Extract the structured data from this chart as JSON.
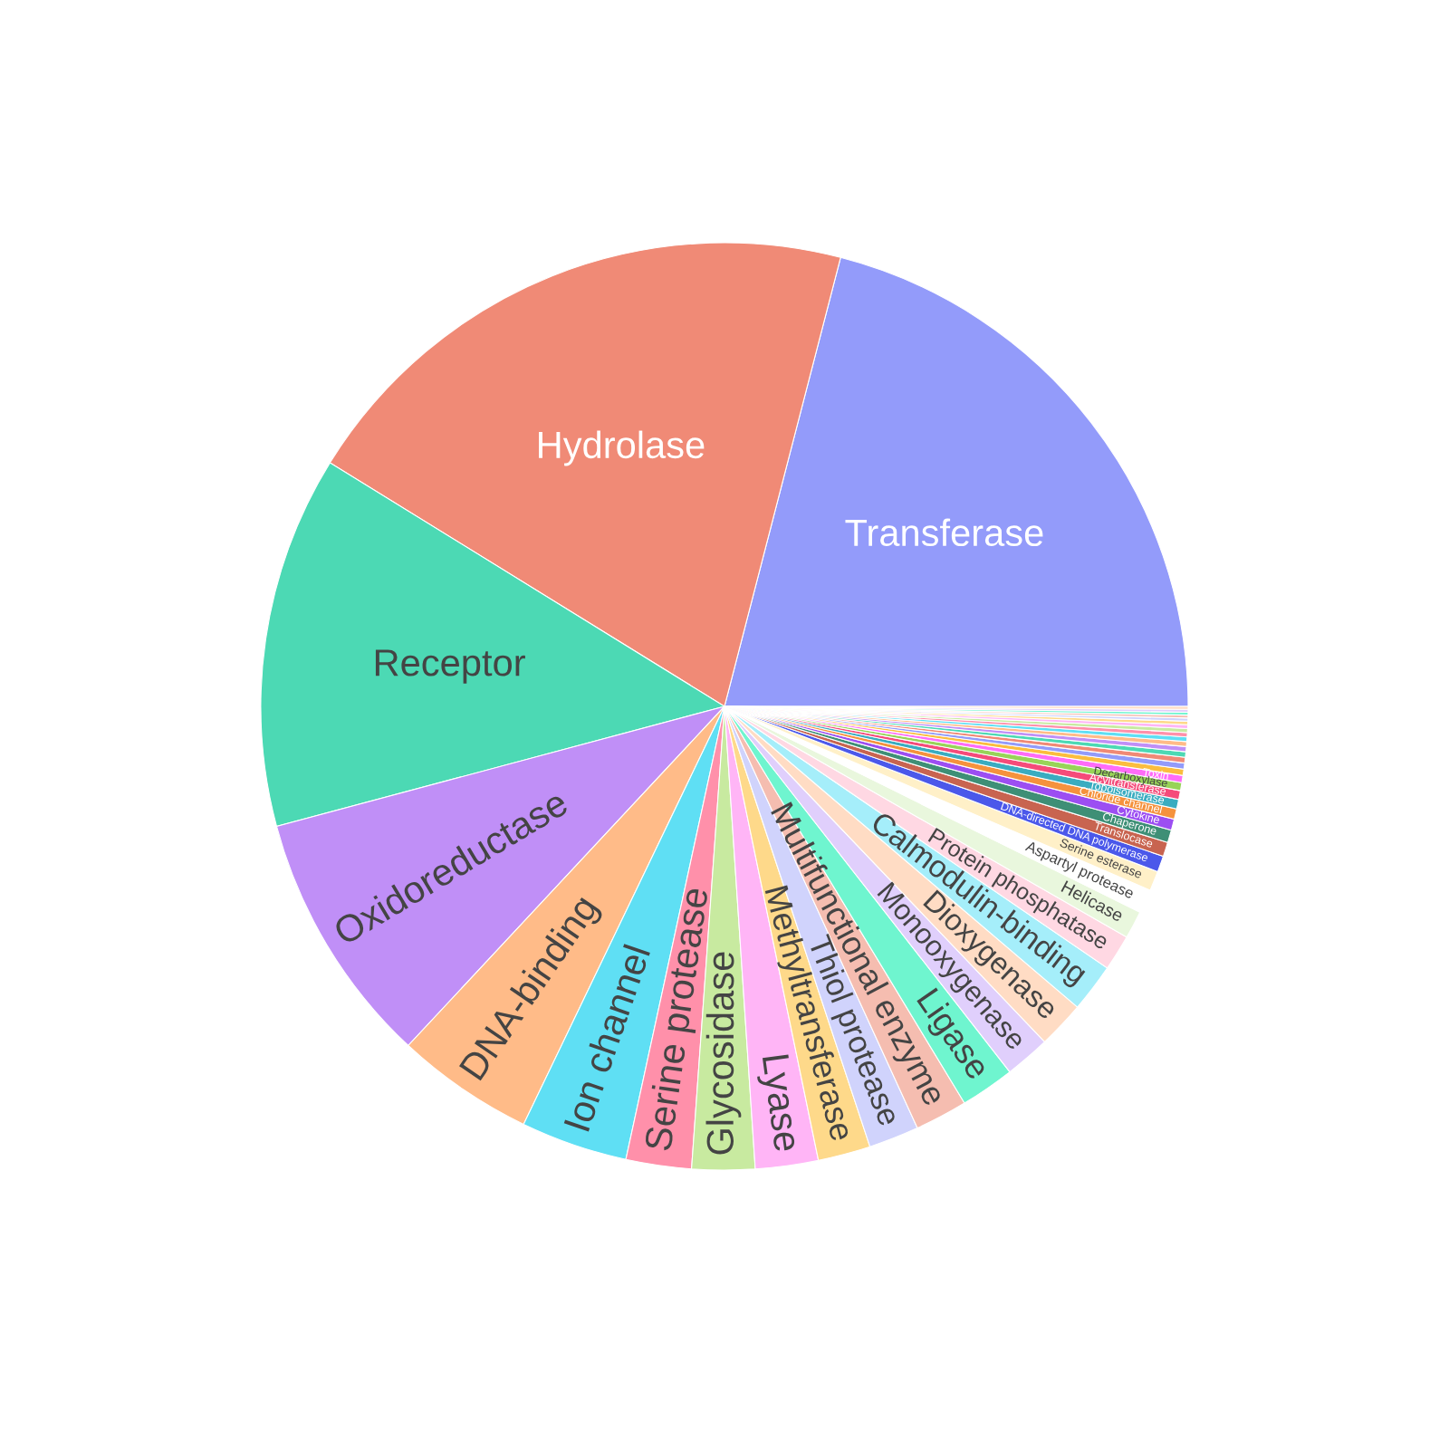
{
  "chart_data": {
    "type": "pie",
    "categories": [
      "Transferase",
      "Hydrolase",
      "Receptor",
      "Oxidoreductase",
      "DNA-binding",
      "Ion channel",
      "Serine protease",
      "Glycosidase",
      "Lyase",
      "Methyltransferase",
      "Thiol protease",
      "Multifunctional enzyme",
      "Ligase",
      "Monooxygenase",
      "Dioxygenase",
      "Calmodulin-binding",
      "Protein phosphatase",
      "Helicase",
      "Aspartyl protease",
      "Serine esterase",
      "DNA-directed DNA polymerase",
      "Translocase",
      "Chaperone",
      "Cytokine",
      "Chloride channel",
      "Topoisomerase",
      "Acyltransferase",
      "Decarboxylase",
      "Toxin",
      null,
      null,
      null,
      null,
      null,
      null,
      null,
      null,
      null,
      null,
      null,
      null,
      null,
      null,
      null,
      null
    ],
    "values": [
      20.97,
      20.22,
      12.97,
      8.89,
      4.81,
      3.72,
      2.28,
      2.19,
      2.19,
      1.83,
      1.75,
      1.83,
      1.89,
      1.58,
      1.64,
      1.69,
      1.25,
      0.97,
      0.83,
      0.69,
      0.56,
      0.5,
      0.44,
      0.39,
      0.36,
      0.33,
      0.31,
      0.28,
      0.25,
      0.22,
      0.21,
      0.2,
      0.19,
      0.18,
      0.17,
      0.16,
      0.15,
      0.14,
      0.13,
      0.12,
      0.11,
      0.1,
      0.1,
      0.1,
      0.1
    ],
    "colors": [
      "#939bfa",
      "#f08a76",
      "#4cd9b4",
      "#c08ff7",
      "#ffbb88",
      "#5fdff4",
      "#ff90aa",
      "#c8eaa0",
      "#ffb5f6",
      "#fed98a",
      "#d0d3fc",
      "#f5bdb0",
      "#6ff5cf",
      "#e0cffc",
      "#ffdcc4",
      "#a5eefa",
      "#ffd8e3",
      "#e9f7dd",
      "#ffffff",
      "#fff0c8",
      "#4b58ea",
      "#c86450",
      "#3e8f76",
      "#9c4ef2",
      "#f5923d",
      "#3aacc0",
      "#f54b7a",
      "#98d358",
      "#ff6cf8",
      "#fbbd3f",
      "#939bfa",
      "#f08a76",
      "#4cd9b4",
      "#c08ff7",
      "#ffbb88",
      "#5fdff4",
      "#ff90aa",
      "#c8eaa0",
      "#ffb5f6",
      "#fed98a",
      "#d0d3fc",
      "#f5bdb0",
      "#6ff5cf",
      "#e0cffc",
      "#ffdcc4"
    ]
  }
}
